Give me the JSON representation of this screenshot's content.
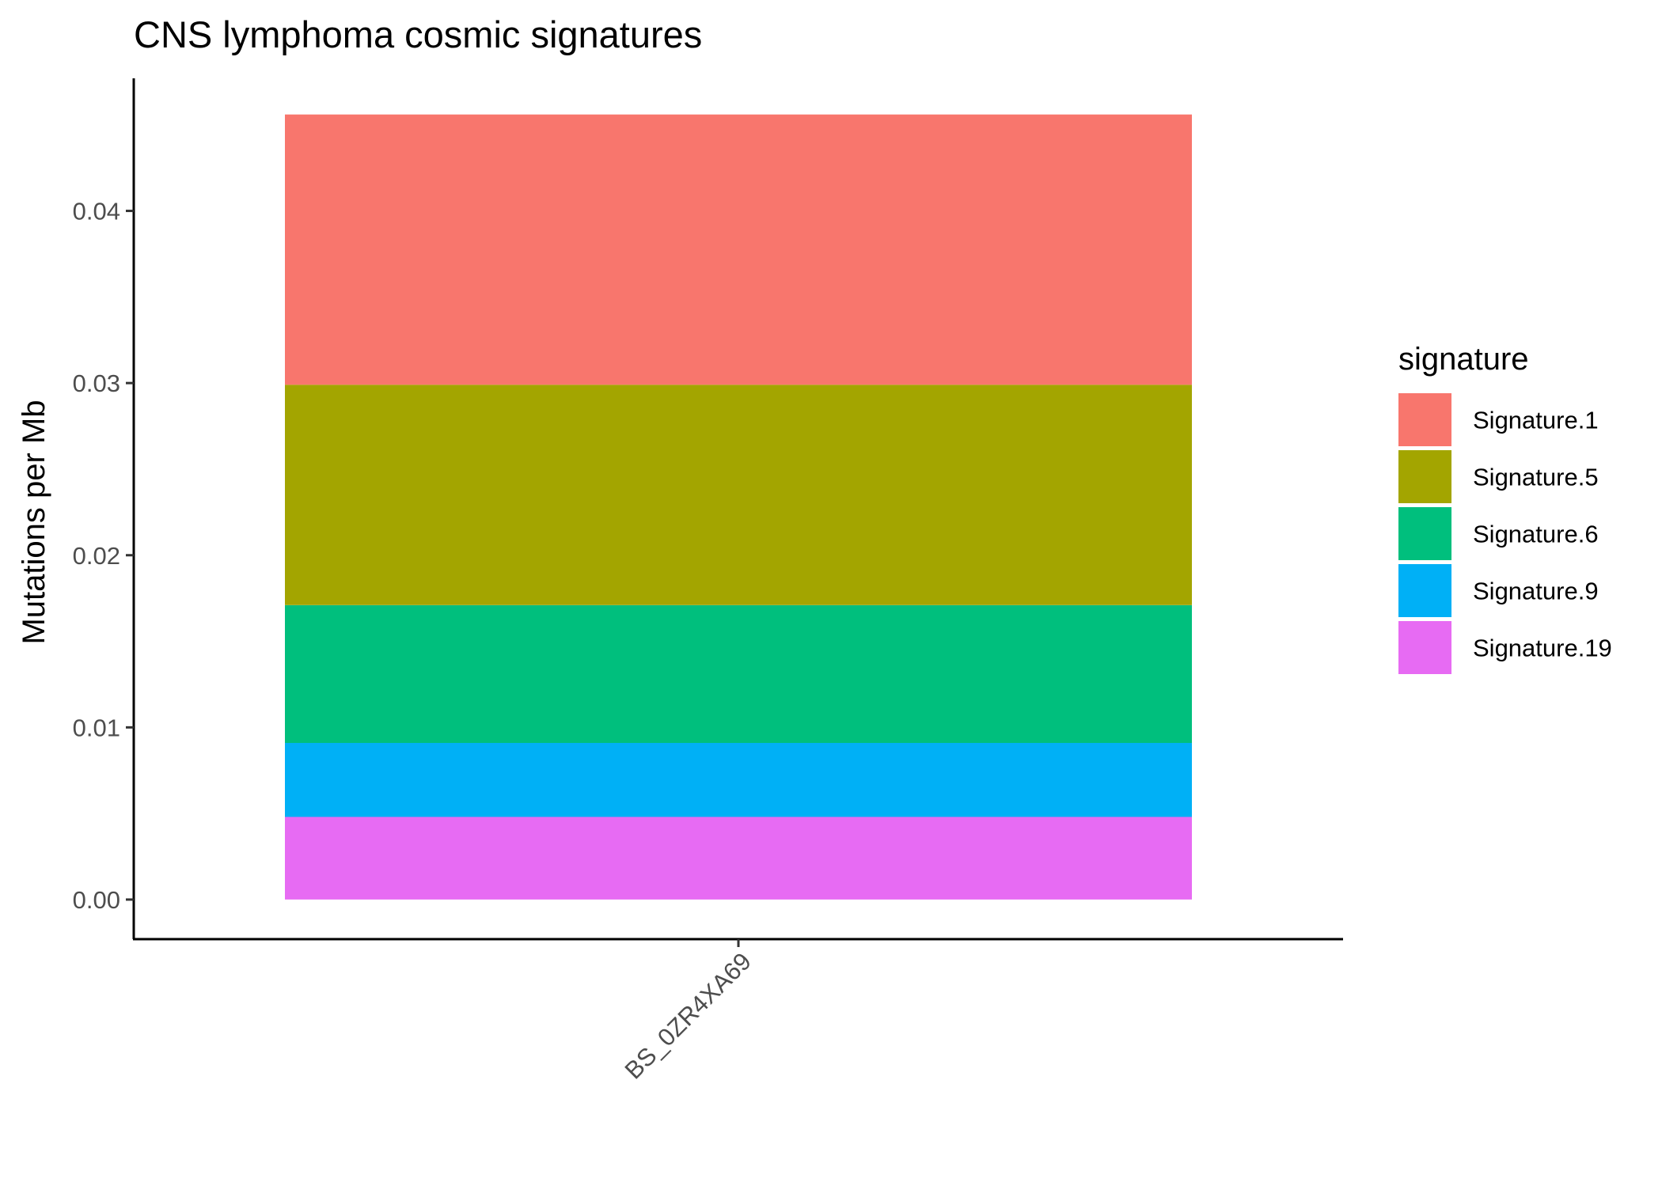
{
  "chart_data": {
    "type": "bar",
    "stacked": true,
    "title": "CNS lymphoma cosmic signatures",
    "xlabel": "",
    "ylabel": "Mutations per Mb",
    "categories": [
      "BS_0ZR4XA69"
    ],
    "ylim": [
      -0.0023,
      0.0477
    ],
    "yticks": [
      0.0,
      0.01,
      0.02,
      0.03,
      0.04
    ],
    "ytick_labels": [
      "0.00",
      "0.01",
      "0.02",
      "0.03",
      "0.04"
    ],
    "legend": {
      "title": "signature",
      "position": "right"
    },
    "grid": false,
    "series": [
      {
        "name": "Signature.1",
        "color": "#F8766D",
        "values": [
          0.0157
        ]
      },
      {
        "name": "Signature.5",
        "color": "#A3A500",
        "values": [
          0.0128
        ]
      },
      {
        "name": "Signature.6",
        "color": "#00BF7D",
        "values": [
          0.008
        ]
      },
      {
        "name": "Signature.9",
        "color": "#00B0F6",
        "values": [
          0.0043
        ]
      },
      {
        "name": "Signature.19",
        "color": "#E76BF3",
        "values": [
          0.0048
        ]
      }
    ],
    "stack_order_bottom_to_top": [
      "Signature.19",
      "Signature.9",
      "Signature.6",
      "Signature.5",
      "Signature.1"
    ]
  }
}
